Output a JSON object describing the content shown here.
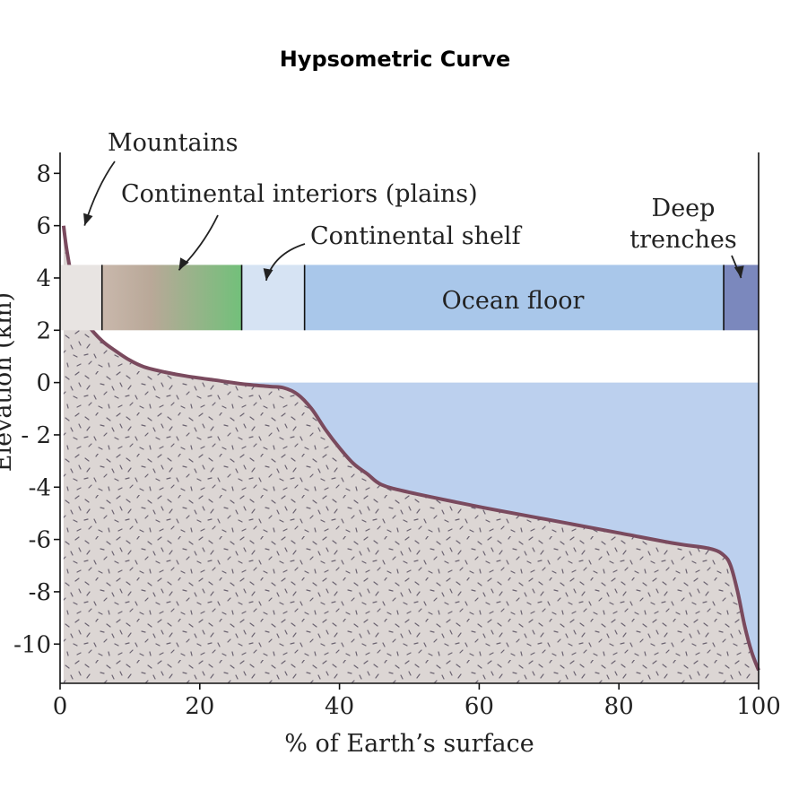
{
  "chart_data": {
    "type": "area",
    "title": "Hypsometric Curve",
    "xlabel": "% of Earth’s surface",
    "ylabel": "Elevation (km)",
    "xlim": [
      0,
      100
    ],
    "ylim": [
      -11.5,
      8.8
    ],
    "x_ticks": [
      0,
      20,
      40,
      60,
      80,
      100
    ],
    "y_ticks": [
      8,
      6,
      4,
      2,
      0,
      -2,
      -4,
      -6,
      -8,
      -10
    ],
    "y_tick_labels": [
      "8",
      "6",
      "4",
      "2",
      "0",
      "- 2",
      "-4",
      "-6",
      "-8",
      "-10"
    ],
    "sea_level": 0,
    "series": [
      {
        "x": [
          0.5,
          1,
          2,
          3,
          4,
          6,
          8,
          10,
          12,
          15,
          18,
          22,
          26,
          30,
          32,
          34,
          36,
          38,
          40,
          42,
          44,
          46,
          50,
          60,
          70,
          80,
          88,
          93,
          95,
          96,
          97,
          98,
          99,
          100
        ],
        "y": [
          6.0,
          5.0,
          3.6,
          2.8,
          2.2,
          1.6,
          1.2,
          0.85,
          0.6,
          0.4,
          0.25,
          0.1,
          -0.05,
          -0.15,
          -0.2,
          -0.45,
          -1.0,
          -1.8,
          -2.5,
          -3.1,
          -3.5,
          -3.9,
          -4.2,
          -4.75,
          -5.25,
          -5.75,
          -6.15,
          -6.35,
          -6.6,
          -7.0,
          -8.0,
          -9.3,
          -10.3,
          -11.0
        ]
      }
    ],
    "bands": [
      {
        "from": 0,
        "to": 6,
        "color": "#e8e4e2"
      },
      {
        "from": 6,
        "to": 26,
        "color": "#c9b8ac",
        "color_end": "#72c07a"
      },
      {
        "from": 26,
        "to": 35,
        "color": "#d6e3f3"
      },
      {
        "from": 35,
        "to": 95,
        "color": "#a9c7ea"
      },
      {
        "from": 95,
        "to": 100,
        "color": "#7b88bd"
      }
    ],
    "band_y": [
      2,
      4.5
    ],
    "colors": {
      "curve": "#7a4a5e",
      "land_fill": "#d9d4d2",
      "ocean_fill": "#bcd0ee",
      "speckle": "#6a6270"
    },
    "annotations": [
      {
        "text": "Mountains",
        "target": [
          3.5,
          6.0
        ]
      },
      {
        "text": "Continental interiors (plains)",
        "target": [
          17,
          4.3
        ]
      },
      {
        "text": "Continental shelf",
        "target": [
          29.5,
          3.9
        ]
      },
      {
        "text": "Ocean floor"
      },
      {
        "text": "Deep",
        "line2": "trenches",
        "target": [
          97.5,
          4.0
        ]
      }
    ]
  }
}
